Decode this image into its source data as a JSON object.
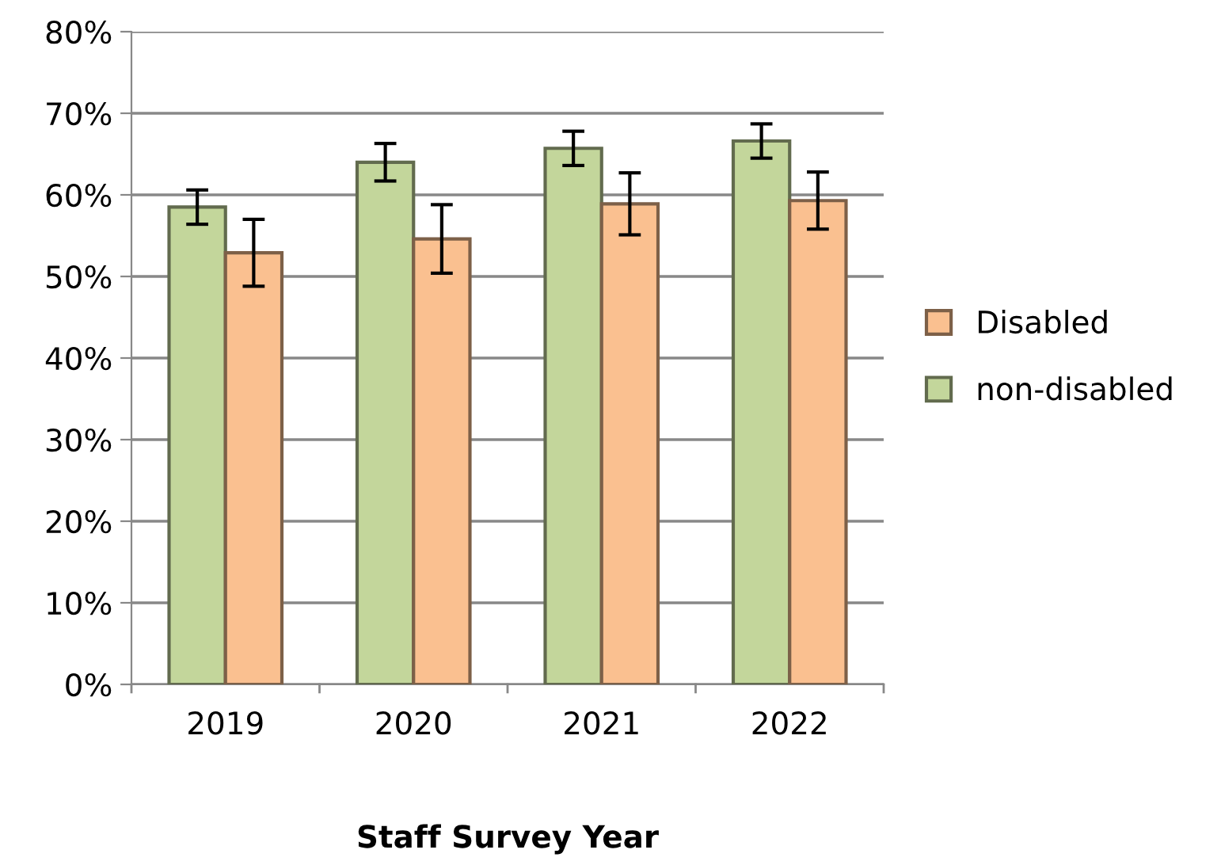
{
  "chart_data": {
    "type": "bar",
    "xlabel": "Staff Survey Year",
    "categories": [
      "2019",
      "2020",
      "2021",
      "2022"
    ],
    "series": [
      {
        "name": "non-disabled",
        "color": "#c3d69b",
        "values": [
          58.5,
          64.0,
          65.7,
          66.6
        ],
        "errors": [
          2.1,
          2.3,
          2.1,
          2.1
        ]
      },
      {
        "name": "Disabled",
        "color": "#fac090",
        "values": [
          52.9,
          54.6,
          58.9,
          59.3
        ],
        "errors": [
          4.1,
          4.2,
          3.8,
          3.5
        ]
      }
    ],
    "ylim": [
      0,
      80
    ],
    "yticks": [
      {
        "value": 0,
        "label": "0%"
      },
      {
        "value": 10,
        "label": "10%"
      },
      {
        "value": 20,
        "label": "20%"
      },
      {
        "value": 30,
        "label": "30%"
      },
      {
        "value": 40,
        "label": "40%"
      },
      {
        "value": 50,
        "label": "50%"
      },
      {
        "value": 60,
        "label": "60%"
      },
      {
        "value": 70,
        "label": "70%"
      },
      {
        "value": 80,
        "label": "80%"
      }
    ],
    "grid": "y",
    "legend": "right"
  }
}
